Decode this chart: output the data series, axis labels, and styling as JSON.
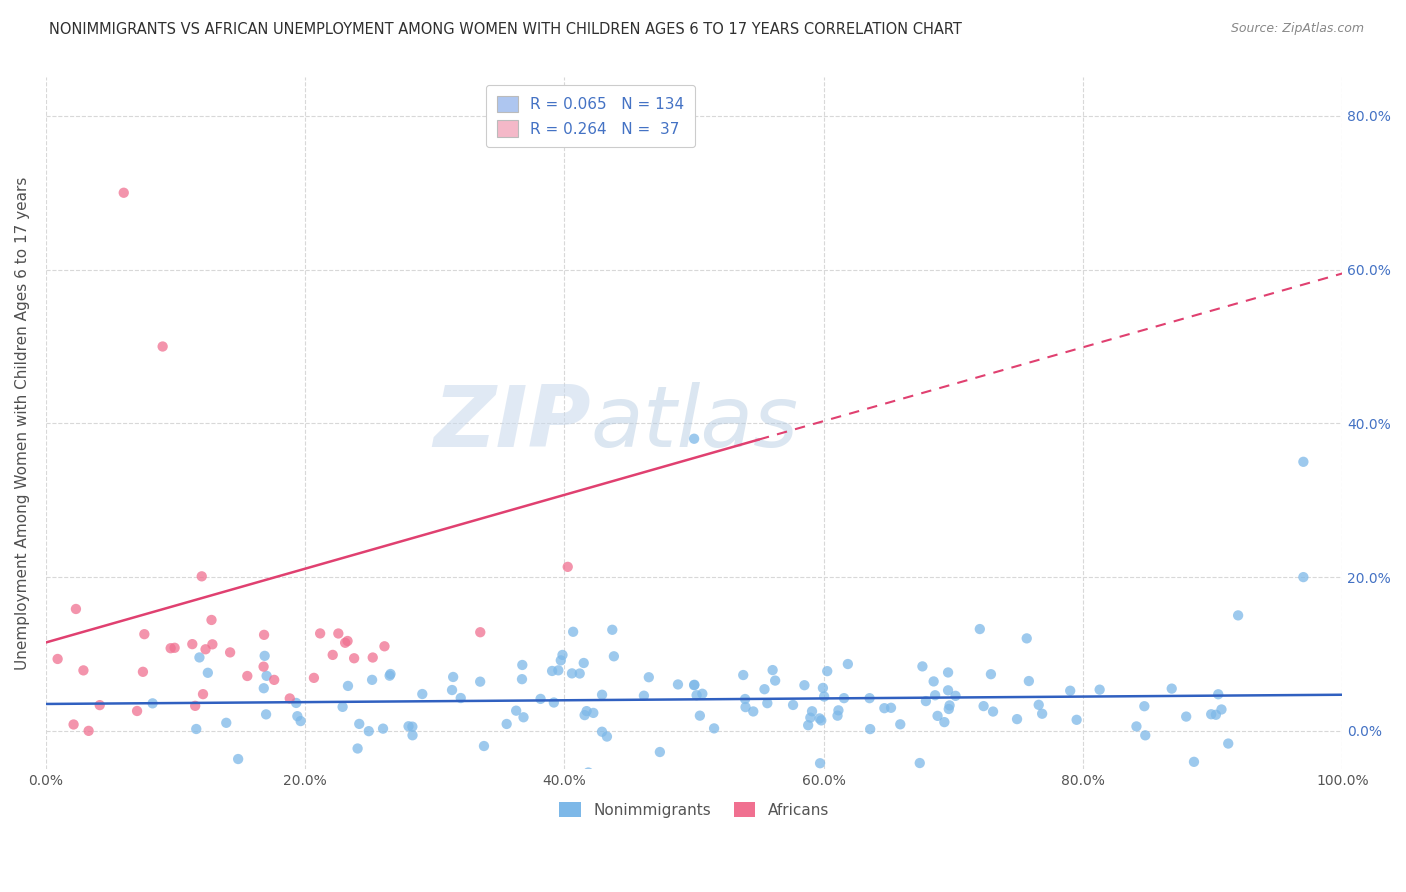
{
  "title": "NONIMMIGRANTS VS AFRICAN UNEMPLOYMENT AMONG WOMEN WITH CHILDREN AGES 6 TO 17 YEARS CORRELATION CHART",
  "source": "Source: ZipAtlas.com",
  "ylabel": "Unemployment Among Women with Children Ages 6 to 17 years",
  "xlim": [
    0.0,
    1.0
  ],
  "ylim": [
    -0.05,
    0.85
  ],
  "xtick_labels": [
    "0.0%",
    "20.0%",
    "40.0%",
    "60.0%",
    "80.0%",
    "100.0%"
  ],
  "xtick_values": [
    0.0,
    0.2,
    0.4,
    0.6,
    0.8,
    1.0
  ],
  "ytick_values": [
    0.0,
    0.2,
    0.4,
    0.6,
    0.8
  ],
  "right_ytick_labels": [
    "0.0%",
    "20.0%",
    "40.0%",
    "60.0%",
    "80.0%"
  ],
  "legend_entries": [
    {
      "label": "Nonimmigrants",
      "color": "#aec6f0",
      "dot_color": "#7db8e8",
      "R": 0.065,
      "N": 134
    },
    {
      "label": "Africans",
      "color": "#f4b8c8",
      "dot_color": "#f07090",
      "R": 0.264,
      "N": 37
    }
  ],
  "watermark_zip": "ZIP",
  "watermark_atlas": "atlas",
  "background_color": "#ffffff",
  "grid_color": "#d8d8d8",
  "line_color_blue": "#3060c0",
  "line_color_pink": "#e04070",
  "title_color": "#303030",
  "source_color": "#888888",
  "ylabel_color": "#505050",
  "right_tick_color": "#4472c4",
  "seed": 42,
  "N_blue": 134,
  "N_pink": 37,
  "R_blue": 0.065,
  "R_pink": 0.264
}
